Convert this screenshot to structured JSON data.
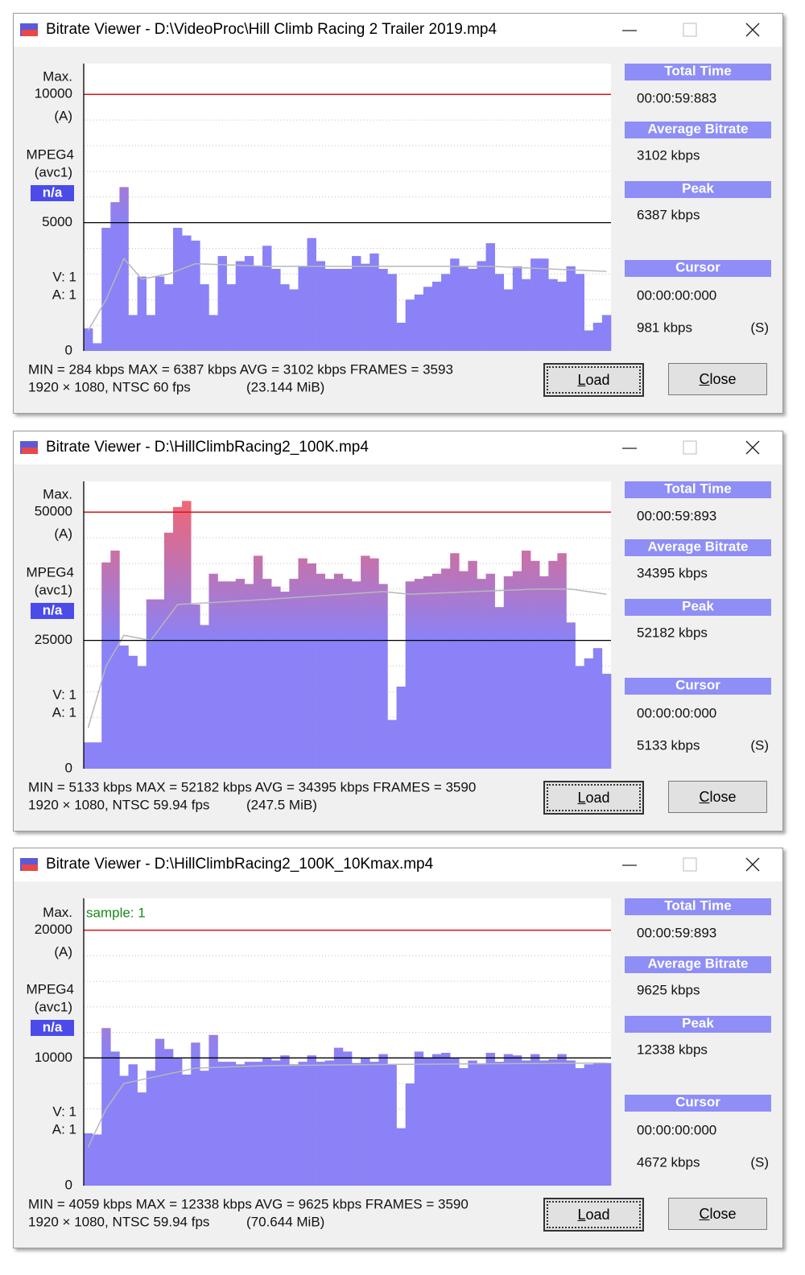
{
  "windows": [
    {
      "title": "Bitrate Viewer - D:\\VideoProc\\Hill Climb Racing 2 Trailer 2019.mp4",
      "max_label": "Max.",
      "max_suffix": "(A)",
      "codec": "MPEG4",
      "fourcc": "(avc1)",
      "badge": "n/a",
      "video": "V:  1",
      "audio": "A:  1",
      "panel": {
        "total_time_label": "Total Time",
        "total_time": "00:00:59:883",
        "avg_label": "Average Bitrate",
        "avg": "3102 kbps",
        "peak_label": "Peak",
        "peak": "6387 kbps",
        "cursor_label": "Cursor",
        "cursor_time": "00:00:00:000",
        "cursor_bitrate": "981 kbps",
        "cursor_mode": "(S)"
      },
      "stats": [
        "MIN = 284 kbps  MAX = 6387 kbps  AVG = 3102 kbps  FRAMES = 3593",
        "1920 × 1080, NTSC 60 fps",
        "(23.144 MiB)"
      ],
      "buttons": [
        "Load",
        "Close"
      ]
    },
    {
      "title": "Bitrate Viewer - D:\\HillClimbRacing2_100K.mp4",
      "max_label": "Max.",
      "max_suffix": "(A)",
      "codec": "MPEG4",
      "fourcc": "(avc1)",
      "badge": "n/a",
      "video": "V:  1",
      "audio": "A:  1",
      "panel": {
        "total_time_label": "Total Time",
        "total_time": "00:00:59:893",
        "avg_label": "Average Bitrate",
        "avg": "34395 kbps",
        "peak_label": "Peak",
        "peak": "52182 kbps",
        "cursor_label": "Cursor",
        "cursor_time": "00:00:00:000",
        "cursor_bitrate": "5133 kbps",
        "cursor_mode": "(S)"
      },
      "stats": [
        "MIN = 5133 kbps  MAX = 52182 kbps  AVG = 34395 kbps  FRAMES = 3590",
        "1920 × 1080, NTSC 59.94 fps",
        "(247.5 MiB)"
      ],
      "buttons": [
        "Load",
        "Close"
      ]
    },
    {
      "title": "Bitrate Viewer - D:\\HillClimbRacing2_100K_10Kmax.mp4",
      "max_label": "Max.",
      "max_suffix": "(A)",
      "codec": "MPEG4",
      "fourcc": "(avc1)",
      "badge": "n/a",
      "video": "V:  1",
      "audio": "A:  1",
      "panel": {
        "total_time_label": "Total Time",
        "total_time": "00:00:59:893",
        "avg_label": "Average Bitrate",
        "avg": "9625 kbps",
        "peak_label": "Peak",
        "peak": "12338 kbps",
        "cursor_label": "Cursor",
        "cursor_time": "00:00:00:000",
        "cursor_bitrate": "4672 kbps",
        "cursor_mode": "(S)"
      },
      "stats": [
        "MIN = 4059 kbps  MAX = 12338 kbps  AVG = 9625 kbps  FRAMES = 3590",
        "1920 × 1080, NTSC 59.94 fps",
        "(70.644 MiB)"
      ],
      "buttons": [
        "Load",
        "Close"
      ]
    }
  ],
  "chart_data": [
    {
      "type": "bar",
      "values": [
        880,
        300,
        4800,
        5800,
        6387,
        1400,
        2900,
        1400,
        2900,
        2600,
        4800,
        4500,
        4300,
        2600,
        1400,
        3700,
        2600,
        3500,
        3700,
        3300,
        4100,
        3200,
        2600,
        2400,
        3300,
        4400,
        3500,
        3200,
        3200,
        3200,
        3700,
        3400,
        3800,
        3200,
        3000,
        1100,
        2000,
        2200,
        2500,
        2700,
        3000,
        3600,
        3300,
        3200,
        3500,
        4200,
        3000,
        2400,
        3300,
        2800,
        3600,
        3600,
        2800,
        2700,
        3300,
        3000,
        800,
        1100,
        1400
      ],
      "ylim": [
        0,
        11200
      ],
      "yticks": [
        0,
        5000,
        10000
      ],
      "minor_yticks": [
        1000,
        2000,
        3000,
        4000,
        6000,
        7000,
        8000,
        9000
      ],
      "bar_color": "#8a82f6",
      "peak_color": "#ff6262",
      "avg_color": "#b8b8b8",
      "midline_color": "#000000",
      "maxline_color": "#e01010",
      "avg_curve": {
        "index": [
          0,
          2,
          4,
          6,
          9,
          12,
          20,
          30,
          45,
          58
        ],
        "values": [
          800,
          2000,
          3600,
          2800,
          3000,
          3400,
          3300,
          3300,
          3300,
          3100
        ]
      }
    },
    {
      "type": "bar",
      "values": [
        5133,
        5133,
        40200,
        42500,
        24000,
        22000,
        20000,
        33000,
        33000,
        46000,
        51000,
        52182,
        32000,
        28000,
        38000,
        36500,
        36500,
        37000,
        36000,
        41500,
        37000,
        35500,
        34500,
        37000,
        41000,
        40000,
        38000,
        37000,
        38000,
        37000,
        36500,
        41500,
        41000,
        36000,
        9500,
        16000,
        36500,
        37000,
        37500,
        38000,
        39000,
        42000,
        38500,
        40500,
        37000,
        38000,
        31500,
        37500,
        38500,
        42500,
        40500,
        37500,
        40500,
        42000,
        28500,
        20000,
        21500,
        23500,
        18500
      ],
      "ylim": [
        0,
        56000
      ],
      "yticks": [
        0,
        25000,
        50000
      ],
      "minor_yticks": [
        5000,
        10000,
        15000,
        20000,
        30000,
        35000,
        40000,
        45000
      ],
      "bar_color": "#8a82f6",
      "peak_color": "#ff6262",
      "avg_color": "#b8b8b8",
      "midline_color": "#000000",
      "maxline_color": "#e01010",
      "avg_curve": {
        "index": [
          0,
          2,
          4,
          7,
          10,
          20,
          33,
          36,
          50,
          54,
          58
        ],
        "values": [
          8000,
          20000,
          26000,
          25000,
          32000,
          33000,
          34500,
          34000,
          35000,
          35000,
          34000
        ]
      }
    },
    {
      "type": "bar",
      "values": [
        4100,
        4000,
        12338,
        10500,
        8600,
        9500,
        7300,
        9000,
        11500,
        10700,
        10000,
        8700,
        11200,
        9000,
        11800,
        9700,
        9700,
        9500,
        9700,
        9700,
        10000,
        9800,
        10200,
        9500,
        9700,
        10200,
        9700,
        9800,
        10800,
        10500,
        9600,
        10000,
        9700,
        10300,
        9500,
        4500,
        8000,
        10500,
        10000,
        10300,
        10400,
        10000,
        9200,
        9800,
        9500,
        10400,
        9700,
        10300,
        10200,
        9800,
        10300,
        9800,
        9900,
        10300,
        9800,
        9200,
        9500,
        9600,
        9600
      ],
      "ylim": [
        0,
        22500
      ],
      "yticks": [
        0,
        10000,
        20000
      ],
      "minor_yticks": [
        2000,
        4000,
        6000,
        8000,
        12000,
        14000,
        16000,
        18000
      ],
      "bar_color": "#8a82f6",
      "peak_color": "#ff6262",
      "avg_color": "#b8b8b8",
      "midline_color": "#000000",
      "maxline_color": "#e01010",
      "annotation": "sample: 1",
      "annotation_color": "#1a8a1a",
      "avg_curve": {
        "index": [
          0,
          2,
          4,
          8,
          12,
          20,
          35,
          58
        ],
        "values": [
          3000,
          6000,
          8000,
          8600,
          9200,
          9400,
          9500,
          9600
        ]
      }
    }
  ]
}
